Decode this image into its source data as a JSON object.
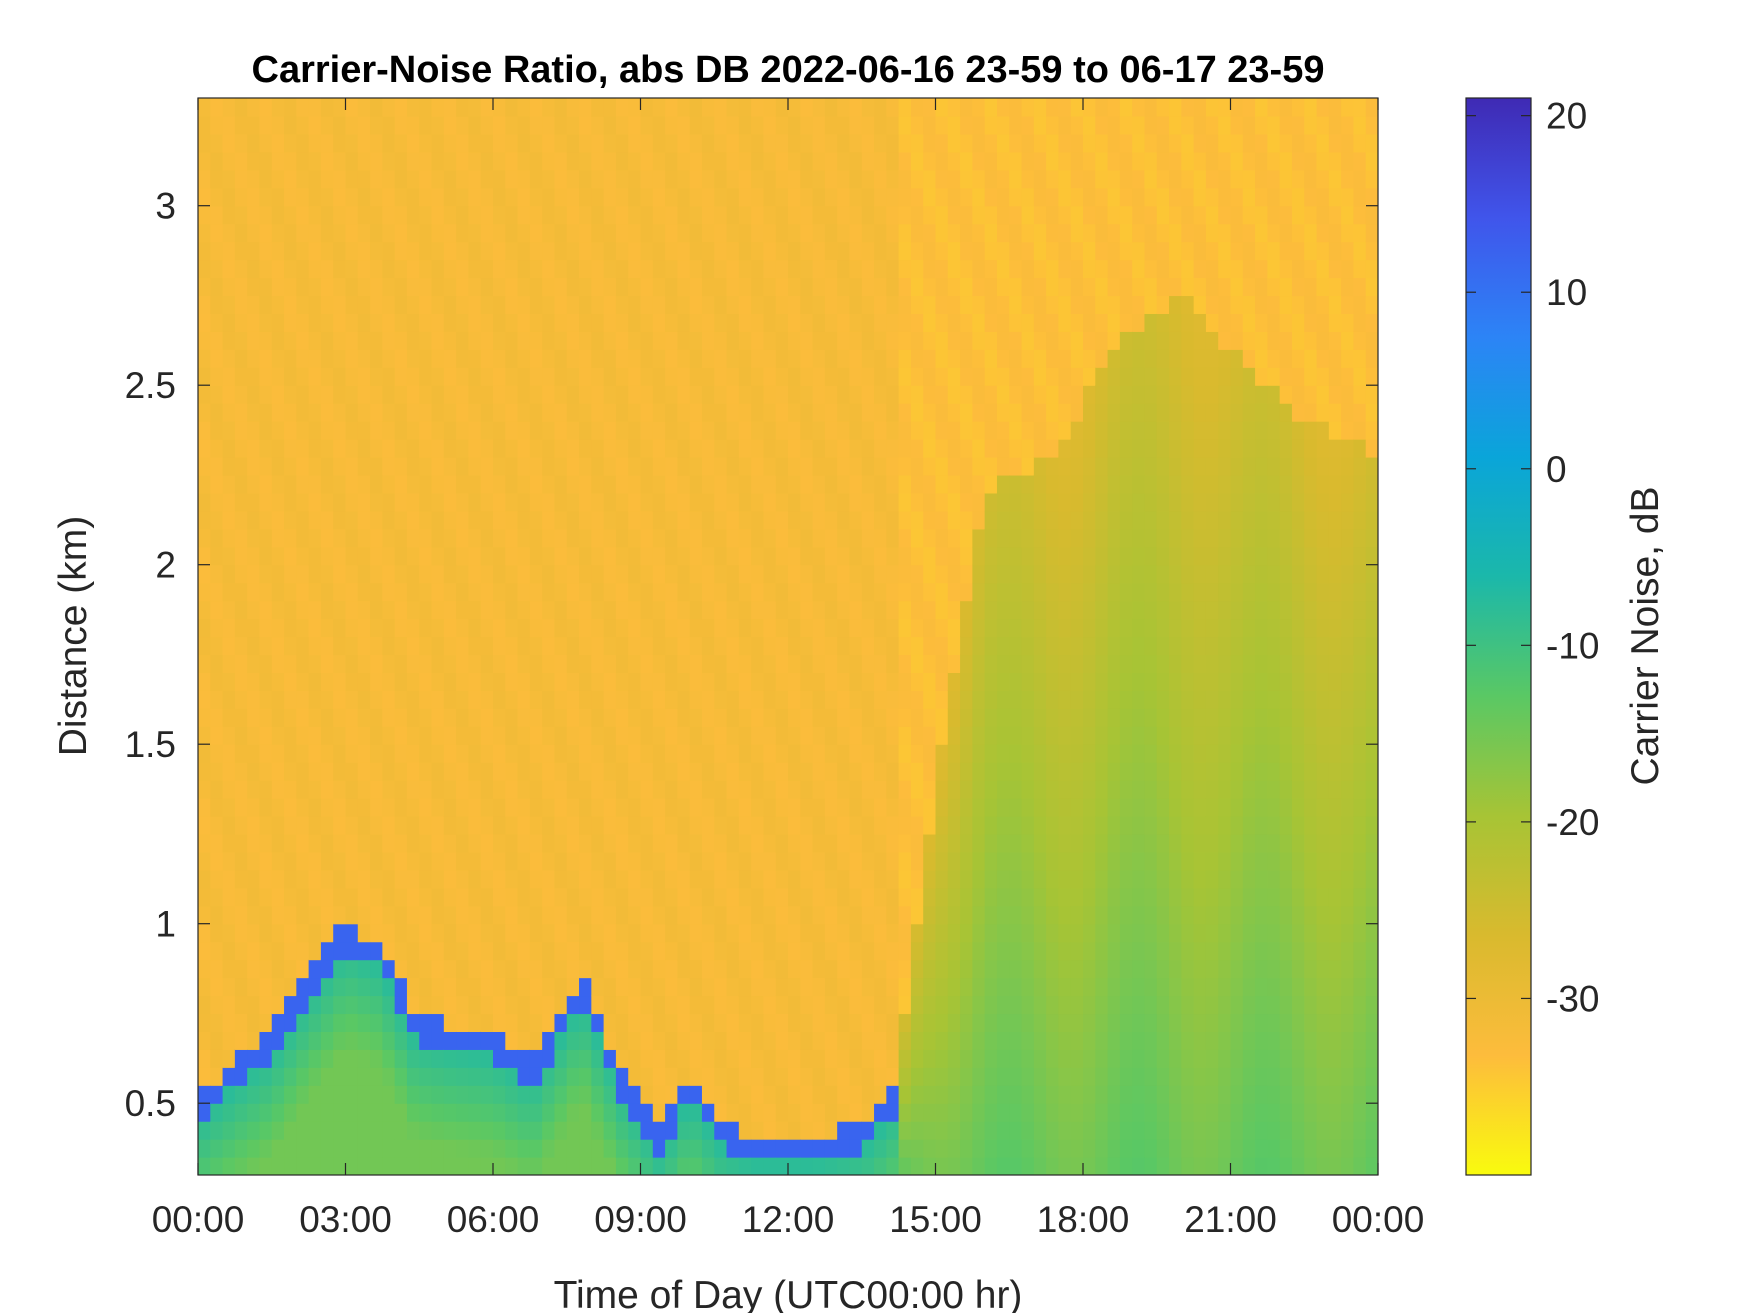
{
  "chart_data": {
    "type": "heatmap",
    "title": "Carrier-Noise Ratio, abs DB 2022-06-16 23-59 to 06-17 23-59",
    "xlabel": "Time of Day (UTC00:00 hr)",
    "ylabel": "Distance (km)",
    "colorbar_label": "Carrier Noise, dB",
    "x_ticks": [
      "00:00",
      "03:00",
      "06:00",
      "09:00",
      "12:00",
      "15:00",
      "18:00",
      "21:00",
      "00:00"
    ],
    "x_range_hours": [
      0,
      24
    ],
    "y_ticks": [
      "0.5",
      "1",
      "1.5",
      "2",
      "2.5",
      "3"
    ],
    "y_tick_values": [
      0.5,
      1,
      1.5,
      2,
      2.5,
      3
    ],
    "y_range_km": [
      0.3,
      3.3
    ],
    "colorbar_ticks": [
      "20",
      "10",
      "0",
      "-10",
      "-20",
      "-30"
    ],
    "colorbar_tick_values": [
      20,
      10,
      0,
      -10,
      -20,
      -30
    ],
    "colorbar_range_db": [
      -40,
      21
    ],
    "colormap": "parula-reversed",
    "colormap_colors": [
      "#F9FB0E",
      "#FDBC3C",
      "#D9BA2E",
      "#A7C435",
      "#5AC864",
      "#1BB8AA",
      "#0AA5D9",
      "#2C84F6",
      "#4055EB",
      "#3F2AB4"
    ],
    "background_level_db": -32,
    "boundary_layer_top_km": [
      {
        "hour": 0.0,
        "km": 0.52
      },
      {
        "hour": 0.8,
        "km": 0.62
      },
      {
        "hour": 1.5,
        "km": 0.7
      },
      {
        "hour": 2.2,
        "km": 0.85
      },
      {
        "hour": 3.0,
        "km": 1.0
      },
      {
        "hour": 3.7,
        "km": 0.95
      },
      {
        "hour": 4.4,
        "km": 0.75
      },
      {
        "hour": 5.2,
        "km": 0.72
      },
      {
        "hour": 6.0,
        "km": 0.7
      },
      {
        "hour": 6.8,
        "km": 0.62
      },
      {
        "hour": 7.8,
        "km": 0.85
      },
      {
        "hour": 8.6,
        "km": 0.6
      },
      {
        "hour": 9.4,
        "km": 0.42
      },
      {
        "hour": 10.0,
        "km": 0.58
      },
      {
        "hour": 10.6,
        "km": 0.45
      },
      {
        "hour": 11.3,
        "km": 0.4
      },
      {
        "hour": 12.5,
        "km": 0.4
      },
      {
        "hour": 13.6,
        "km": 0.45
      },
      {
        "hour": 14.2,
        "km": 0.55
      },
      {
        "hour": 15.0,
        "km": 1.4
      },
      {
        "hour": 16.0,
        "km": 2.2
      },
      {
        "hour": 17.5,
        "km": 2.3
      },
      {
        "hour": 18.5,
        "km": 2.6
      },
      {
        "hour": 20.0,
        "km": 2.75
      },
      {
        "hour": 21.0,
        "km": 2.6
      },
      {
        "hour": 22.5,
        "km": 2.4
      },
      {
        "hour": 24.0,
        "km": 2.3
      }
    ]
  }
}
